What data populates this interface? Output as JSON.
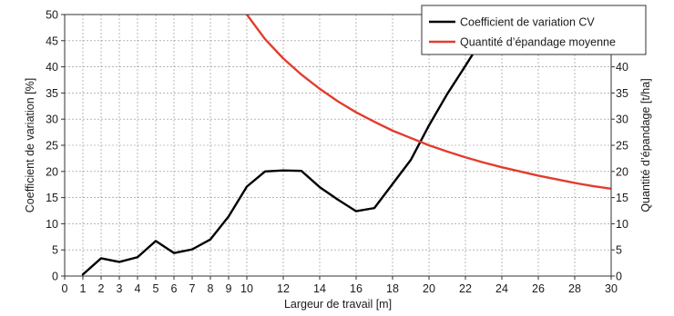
{
  "chart_data": {
    "type": "line",
    "xlabel": "Largeur de travail [m]",
    "ylabel": "Coefficient de variation [%]",
    "y2label": "Quantité d’épandage [t/ha]",
    "xlim": [
      0,
      30
    ],
    "ylim": [
      0,
      50
    ],
    "y2lim": [
      0,
      50
    ],
    "x_ticks": [
      0,
      1,
      2,
      3,
      4,
      5,
      6,
      7,
      8,
      9,
      10,
      12,
      14,
      16,
      18,
      20,
      22,
      24,
      26,
      28,
      30
    ],
    "y_ticks": [
      0,
      5,
      10,
      15,
      20,
      25,
      30,
      35,
      40,
      45,
      50
    ],
    "y2_ticks": [
      0,
      5,
      10,
      15,
      20,
      25,
      30,
      35,
      40,
      45,
      50
    ],
    "grid": true,
    "legend_position": "top-right",
    "series": [
      {
        "name": "Coefficient de variation CV",
        "axis": "left",
        "color": "#000000",
        "x": [
          1,
          2,
          3,
          4,
          5,
          6,
          7,
          8,
          9,
          10,
          11,
          12,
          13,
          14,
          15,
          16,
          17,
          18,
          19,
          20,
          21,
          22,
          22.6
        ],
        "y": [
          0.3,
          3.4,
          2.7,
          3.6,
          6.7,
          4.4,
          5.1,
          7.0,
          11.4,
          17.1,
          20.0,
          20.2,
          20.1,
          17.0,
          14.6,
          12.4,
          13.0,
          17.6,
          22.2,
          28.8,
          34.8,
          40.2,
          43.5
        ]
      },
      {
        "name": "Quantité d’épandage moyenne",
        "axis": "right",
        "color": "#e23c2e",
        "x": [
          10,
          11,
          12,
          13,
          14,
          15,
          16,
          17,
          18,
          19,
          20,
          21,
          22,
          23,
          24,
          25,
          26,
          27,
          28,
          29,
          30
        ],
        "y": [
          50.0,
          45.3,
          41.6,
          38.5,
          35.8,
          33.4,
          31.3,
          29.5,
          27.8,
          26.4,
          25.0,
          23.8,
          22.7,
          21.7,
          20.8,
          20.0,
          19.2,
          18.5,
          17.8,
          17.2,
          16.7
        ]
      }
    ]
  }
}
